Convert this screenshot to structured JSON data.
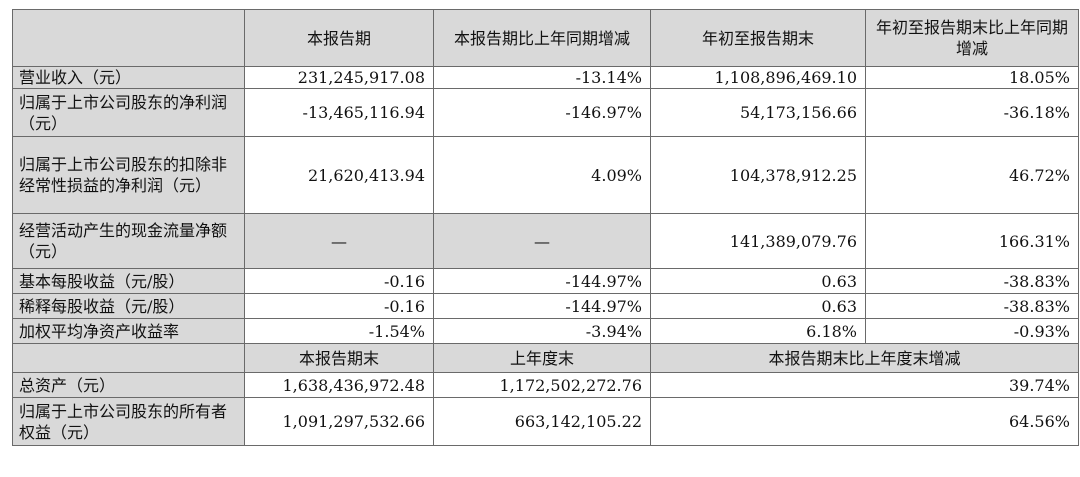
{
  "header": {
    "col1": "本报告期",
    "col2": "本报告期比上年同期增减",
    "col3": "年初至报告期末",
    "col4": "年初至报告期末比上年同期增减"
  },
  "rows": [
    {
      "label": "营业收入（元）",
      "v1": "231,245,917.08",
      "v2": "-13.14%",
      "v3": "1,108,896,469.10",
      "v4": "18.05%"
    },
    {
      "label": "归属于上市公司股东的净利润（元）",
      "v1": "-13,465,116.94",
      "v2": "-146.97%",
      "v3": "54,173,156.66",
      "v4": "-36.18%"
    },
    {
      "label": "归属于上市公司股东的扣除非经常性损益的净利润（元）",
      "v1": "21,620,413.94",
      "v2": "4.09%",
      "v3": "104,378,912.25",
      "v4": "46.72%"
    },
    {
      "label": "经营活动产生的现金流量净额（元）",
      "v1": "—",
      "v2": "—",
      "v3": "141,389,079.76",
      "v4": "166.31%"
    },
    {
      "label": "基本每股收益（元/股）",
      "v1": "-0.16",
      "v2": "-144.97%",
      "v3": "0.63",
      "v4": "-38.83%"
    },
    {
      "label": "稀释每股收益（元/股）",
      "v1": "-0.16",
      "v2": "-144.97%",
      "v3": "0.63",
      "v4": "-38.83%"
    },
    {
      "label": "加权平均净资产收益率",
      "v1": "-1.54%",
      "v2": "-3.94%",
      "v3": "6.18%",
      "v4": "-0.93%"
    }
  ],
  "subheader": {
    "col1": "本报告期末",
    "col2": "上年度末",
    "col3": "本报告期末比上年度末增减"
  },
  "rows2": [
    {
      "label": "总资产（元）",
      "v1": "1,638,436,972.48",
      "v2": "1,172,502,272.76",
      "v3": "39.74%"
    },
    {
      "label": "归属于上市公司股东的所有者权益（元）",
      "v1": "1,091,297,532.66",
      "v2": "663,142,105.22",
      "v3": "64.56%"
    }
  ]
}
